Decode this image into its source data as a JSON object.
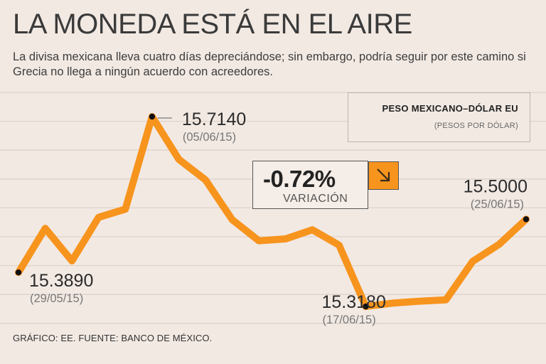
{
  "header": {
    "title": "LA MONEDA ESTÁ EN EL AIRE",
    "subtitle": "La divisa mexicana lleva cuatro días depreciándose; sin embargo, podría seguir por este camino si Grecia no llega a ningún acuerdo con acreedores."
  },
  "legend": {
    "title": "PESO MEXICANO–DÓLAR EU",
    "subtitle": "(PESOS POR DÓLAR)"
  },
  "variation": {
    "value": "-0.72%",
    "label": "VARIACIÓN",
    "arrow_icon": "arrow-down-right-icon"
  },
  "footer": {
    "source": "GRÁFICO: EE. FUENTE: BANCO DE MÉXICO."
  },
  "colors": {
    "line": "#f7941d",
    "background": "#f2e9e3",
    "grid": "#ddd3cb"
  },
  "chart_data": {
    "type": "line",
    "title": "PESO MEXICANO–DÓLAR EU",
    "ylabel": "(PESOS POR DÓLAR)",
    "ylim": [
      15.29,
      15.76
    ],
    "grid": true,
    "series": [
      {
        "name": "Peso mexicano–dólar EU",
        "values": [
          15.389,
          15.481,
          15.413,
          15.504,
          15.521,
          15.714,
          15.625,
          15.582,
          15.499,
          15.455,
          15.459,
          15.478,
          15.446,
          15.318,
          15.325,
          15.329,
          15.332,
          15.412,
          15.448,
          15.5
        ]
      }
    ],
    "annotations": [
      {
        "index": 0,
        "value": "15.3890",
        "date": "(29/05/15)"
      },
      {
        "index": 5,
        "value": "15.7140",
        "date": "(05/06/15)"
      },
      {
        "index": 13,
        "value": "15.3180",
        "date": "(17/06/15)"
      },
      {
        "index": 19,
        "value": "15.5000",
        "date": "(25/06/15)"
      }
    ]
  }
}
